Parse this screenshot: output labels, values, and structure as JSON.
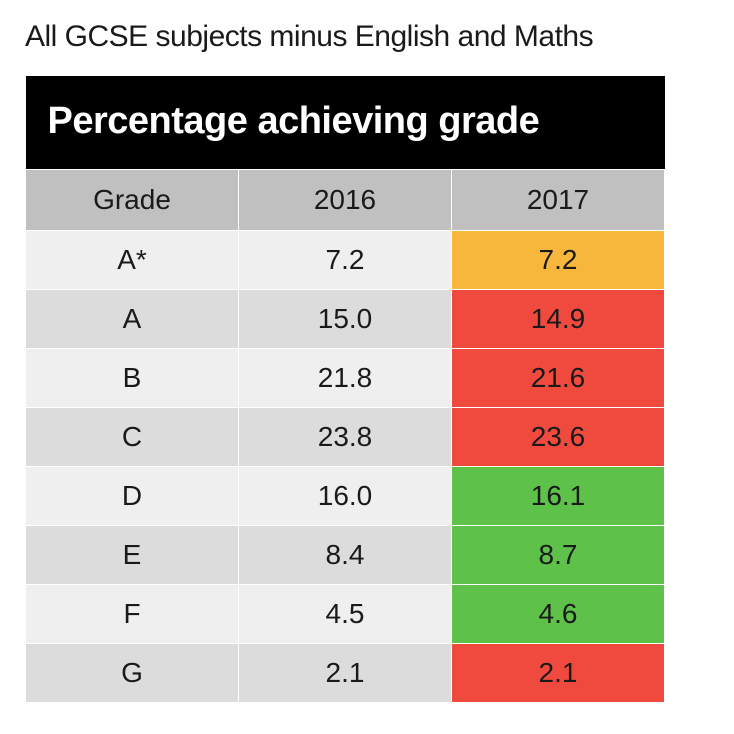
{
  "title": "All GCSE subjects minus English and Maths",
  "table": {
    "banner": "Percentage achieving grade",
    "columns": [
      "Grade",
      "2016",
      "2017"
    ],
    "header_bg": "#c0c0c0",
    "banner_bg": "#000000",
    "banner_color": "#ffffff",
    "border_color": "#ffffff",
    "title_fontsize": 30,
    "banner_fontsize": 38,
    "header_fontsize": 28,
    "cell_fontsize": 28,
    "col_widths_pct": [
      33.33,
      33.33,
      33.33
    ],
    "alt_row_colors": [
      "#efefef",
      "#dcdcdc"
    ],
    "status_colors": {
      "same": "#f6b73c",
      "down": "#f04a3e",
      "up": "#5dc14a"
    },
    "rows": [
      {
        "grade": "A*",
        "y2016": "7.2",
        "y2017": "7.2",
        "status": "same"
      },
      {
        "grade": "A",
        "y2016": "15.0",
        "y2017": "14.9",
        "status": "down"
      },
      {
        "grade": "B",
        "y2016": "21.8",
        "y2017": "21.6",
        "status": "down"
      },
      {
        "grade": "C",
        "y2016": "23.8",
        "y2017": "23.6",
        "status": "down"
      },
      {
        "grade": "D",
        "y2016": "16.0",
        "y2017": "16.1",
        "status": "up"
      },
      {
        "grade": "E",
        "y2016": "8.4",
        "y2017": "8.7",
        "status": "up"
      },
      {
        "grade": "F",
        "y2016": "4.5",
        "y2017": "4.6",
        "status": "up"
      },
      {
        "grade": "G",
        "y2016": "2.1",
        "y2017": "2.1",
        "status": "down"
      }
    ]
  }
}
